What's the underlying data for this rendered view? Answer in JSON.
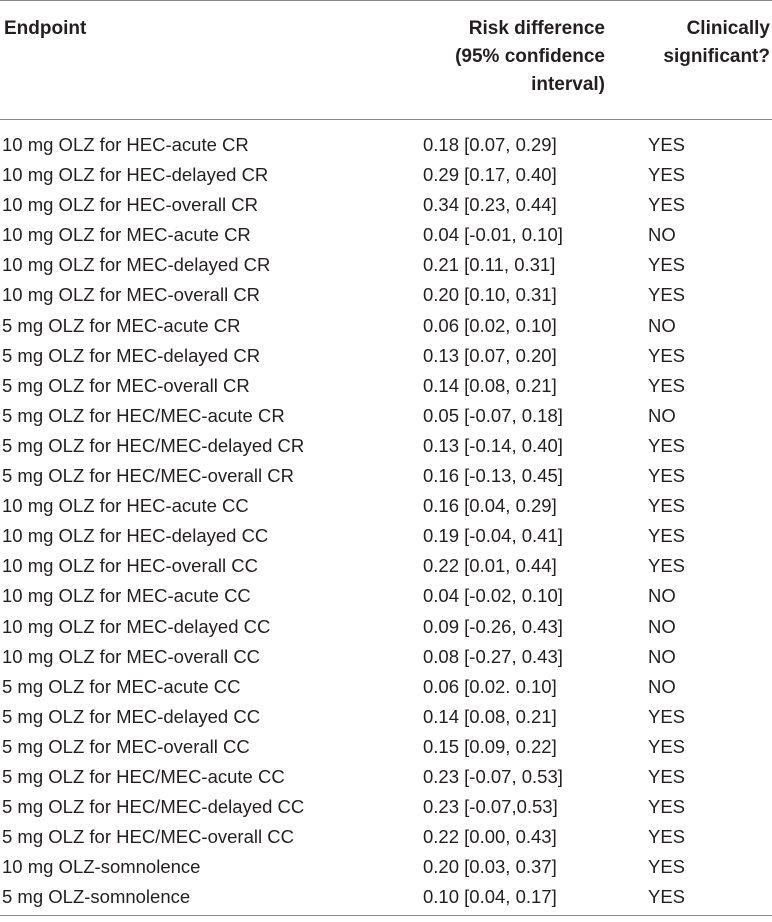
{
  "table": {
    "headers": {
      "endpoint": "Endpoint",
      "risk_difference": [
        "Risk difference",
        "(95% confidence",
        "interval)"
      ],
      "clinically_significant": [
        "Clinically",
        "significant?"
      ]
    },
    "rows": [
      {
        "endpoint": "10 mg OLZ for HEC-acute CR",
        "risk": "0.18 [0.07, 0.29]",
        "sig": "YES"
      },
      {
        "endpoint": "10 mg OLZ for HEC-delayed CR",
        "risk": "0.29 [0.17, 0.40]",
        "sig": "YES"
      },
      {
        "endpoint": "10 mg OLZ for HEC-overall CR",
        "risk": "0.34 [0.23, 0.44]",
        "sig": "YES"
      },
      {
        "endpoint": "10 mg OLZ for MEC-acute CR",
        "risk": "0.04 [-0.01, 0.10]",
        "sig": "NO"
      },
      {
        "endpoint": "10 mg OLZ for MEC-delayed CR",
        "risk": "0.21 [0.11, 0.31]",
        "sig": "YES"
      },
      {
        "endpoint": "10 mg OLZ for MEC-overall CR",
        "risk": "0.20 [0.10, 0.31]",
        "sig": "YES"
      },
      {
        "endpoint": "5 mg OLZ for MEC-acute CR",
        "risk": "0.06 [0.02, 0.10]",
        "sig": "NO"
      },
      {
        "endpoint": "5 mg OLZ for MEC-delayed CR",
        "risk": "0.13 [0.07, 0.20]",
        "sig": "YES"
      },
      {
        "endpoint": "5 mg OLZ for MEC-overall CR",
        "risk": "0.14 [0.08, 0.21]",
        "sig": "YES"
      },
      {
        "endpoint": "5 mg OLZ for HEC/MEC-acute CR",
        "risk": "0.05 [-0.07, 0.18]",
        "sig": "NO"
      },
      {
        "endpoint": "5 mg OLZ for HEC/MEC-delayed CR",
        "risk": "0.13 [-0.14, 0.40]",
        "sig": "YES"
      },
      {
        "endpoint": "5 mg OLZ for HEC/MEC-overall CR",
        "risk": "0.16 [-0.13, 0.45]",
        "sig": "YES"
      },
      {
        "endpoint": "10 mg OLZ for HEC-acute CC",
        "risk": "0.16 [0.04, 0.29]",
        "sig": "YES"
      },
      {
        "endpoint": "10 mg OLZ for HEC-delayed CC",
        "risk": "0.19 [-0.04, 0.41]",
        "sig": "YES"
      },
      {
        "endpoint": "10 mg OLZ for HEC-overall CC",
        "risk": "0.22 [0.01, 0.44]",
        "sig": "YES"
      },
      {
        "endpoint": "10 mg OLZ for MEC-acute CC",
        "risk": "0.04 [-0.02, 0.10]",
        "sig": "NO"
      },
      {
        "endpoint": "10 mg OLZ for MEC-delayed CC",
        "risk": "0.09 [-0.26, 0.43]",
        "sig": "NO"
      },
      {
        "endpoint": "10 mg OLZ for MEC-overall CC",
        "risk": "0.08 [-0.27, 0.43]",
        "sig": "NO"
      },
      {
        "endpoint": "5 mg OLZ for MEC-acute CC",
        "risk": "0.06 [0.02. 0.10]",
        "sig": "NO"
      },
      {
        "endpoint": "5 mg OLZ for MEC-delayed CC",
        "risk": "0.14 [0.08, 0.21]",
        "sig": "YES"
      },
      {
        "endpoint": "5 mg OLZ for MEC-overall CC",
        "risk": "0.15 [0.09, 0.22]",
        "sig": "YES"
      },
      {
        "endpoint": "5 mg OLZ for HEC/MEC-acute CC",
        "risk": "0.23 [-0.07, 0.53]",
        "sig": "YES"
      },
      {
        "endpoint": "5 mg OLZ for HEC/MEC-delayed CC",
        "risk": "0.23 [-0.07,0.53]",
        "sig": "YES"
      },
      {
        "endpoint": "5 mg OLZ for HEC/MEC-overall CC",
        "risk": "0.22 [0.00, 0.43]",
        "sig": "YES"
      },
      {
        "endpoint": "10 mg OLZ-somnolence",
        "risk": "0.20 [0.03, 0.37]",
        "sig": "YES"
      },
      {
        "endpoint": "5 mg OLZ-somnolence",
        "risk": "0.10 [0.04, 0.17]",
        "sig": "YES"
      }
    ]
  }
}
